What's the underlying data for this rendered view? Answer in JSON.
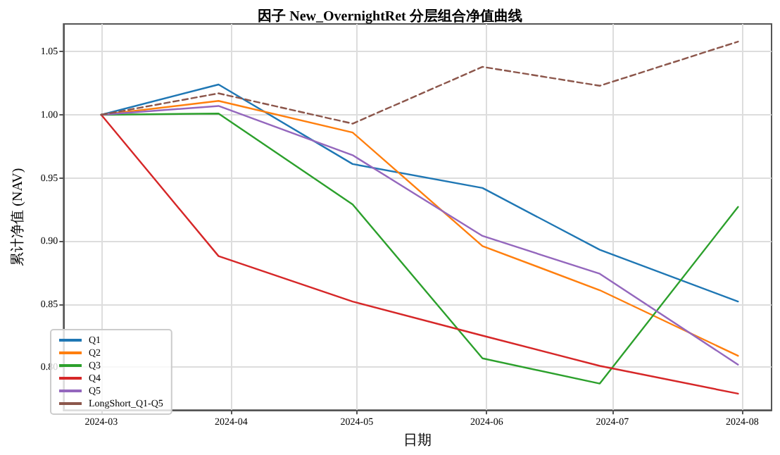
{
  "chart_data": {
    "type": "line",
    "title": "因子 New_OvernightRet 分层组合净值曲线",
    "xlabel": "日期",
    "ylabel": "累计净值 (NAV)",
    "x": [
      "2024-03-01",
      "2024-03-29",
      "2024-04-30",
      "2024-05-31",
      "2024-06-28",
      "2024-07-31"
    ],
    "series": [
      {
        "name": "Q1",
        "color": "#1f77b4",
        "values": [
          1.0,
          1.024,
          0.961,
          0.942,
          0.893,
          0.852
        ]
      },
      {
        "name": "Q2",
        "color": "#ff7f0e",
        "values": [
          1.0,
          1.011,
          0.986,
          0.896,
          0.861,
          0.809
        ]
      },
      {
        "name": "Q3",
        "color": "#2ca02c",
        "values": [
          1.0,
          1.001,
          0.929,
          0.807,
          0.787,
          0.927
        ]
      },
      {
        "name": "Q4",
        "color": "#d62728",
        "values": [
          1.0,
          0.888,
          0.852,
          0.825,
          0.801,
          0.779
        ]
      },
      {
        "name": "Q5",
        "color": "#9467bd",
        "values": [
          1.0,
          1.007,
          0.968,
          0.904,
          0.874,
          0.802
        ]
      },
      {
        "name": "LongShort_Q1-Q5",
        "color": "#8c564b",
        "line_style": "dashed",
        "values": [
          1.0,
          1.017,
          0.993,
          1.038,
          1.023,
          1.058
        ]
      }
    ],
    "xlim": [
      "2024-02-21",
      "2024-08-08"
    ],
    "xticks": [
      "2024-03",
      "2024-04",
      "2024-05",
      "2024-06",
      "2024-07",
      "2024-08"
    ],
    "ylim": [
      0.766,
      1.072
    ],
    "yticks": [
      {
        "value": 0.8,
        "label": "0.80"
      },
      {
        "value": 0.85,
        "label": "0.85"
      },
      {
        "value": 0.9,
        "label": "0.90"
      },
      {
        "value": 0.95,
        "label": "0.95"
      },
      {
        "value": 1.0,
        "label": "1.00"
      },
      {
        "value": 1.05,
        "label": "1.05"
      }
    ],
    "grid": true,
    "legend": "bottom left",
    "marker": "none",
    "line_style": "solid"
  }
}
